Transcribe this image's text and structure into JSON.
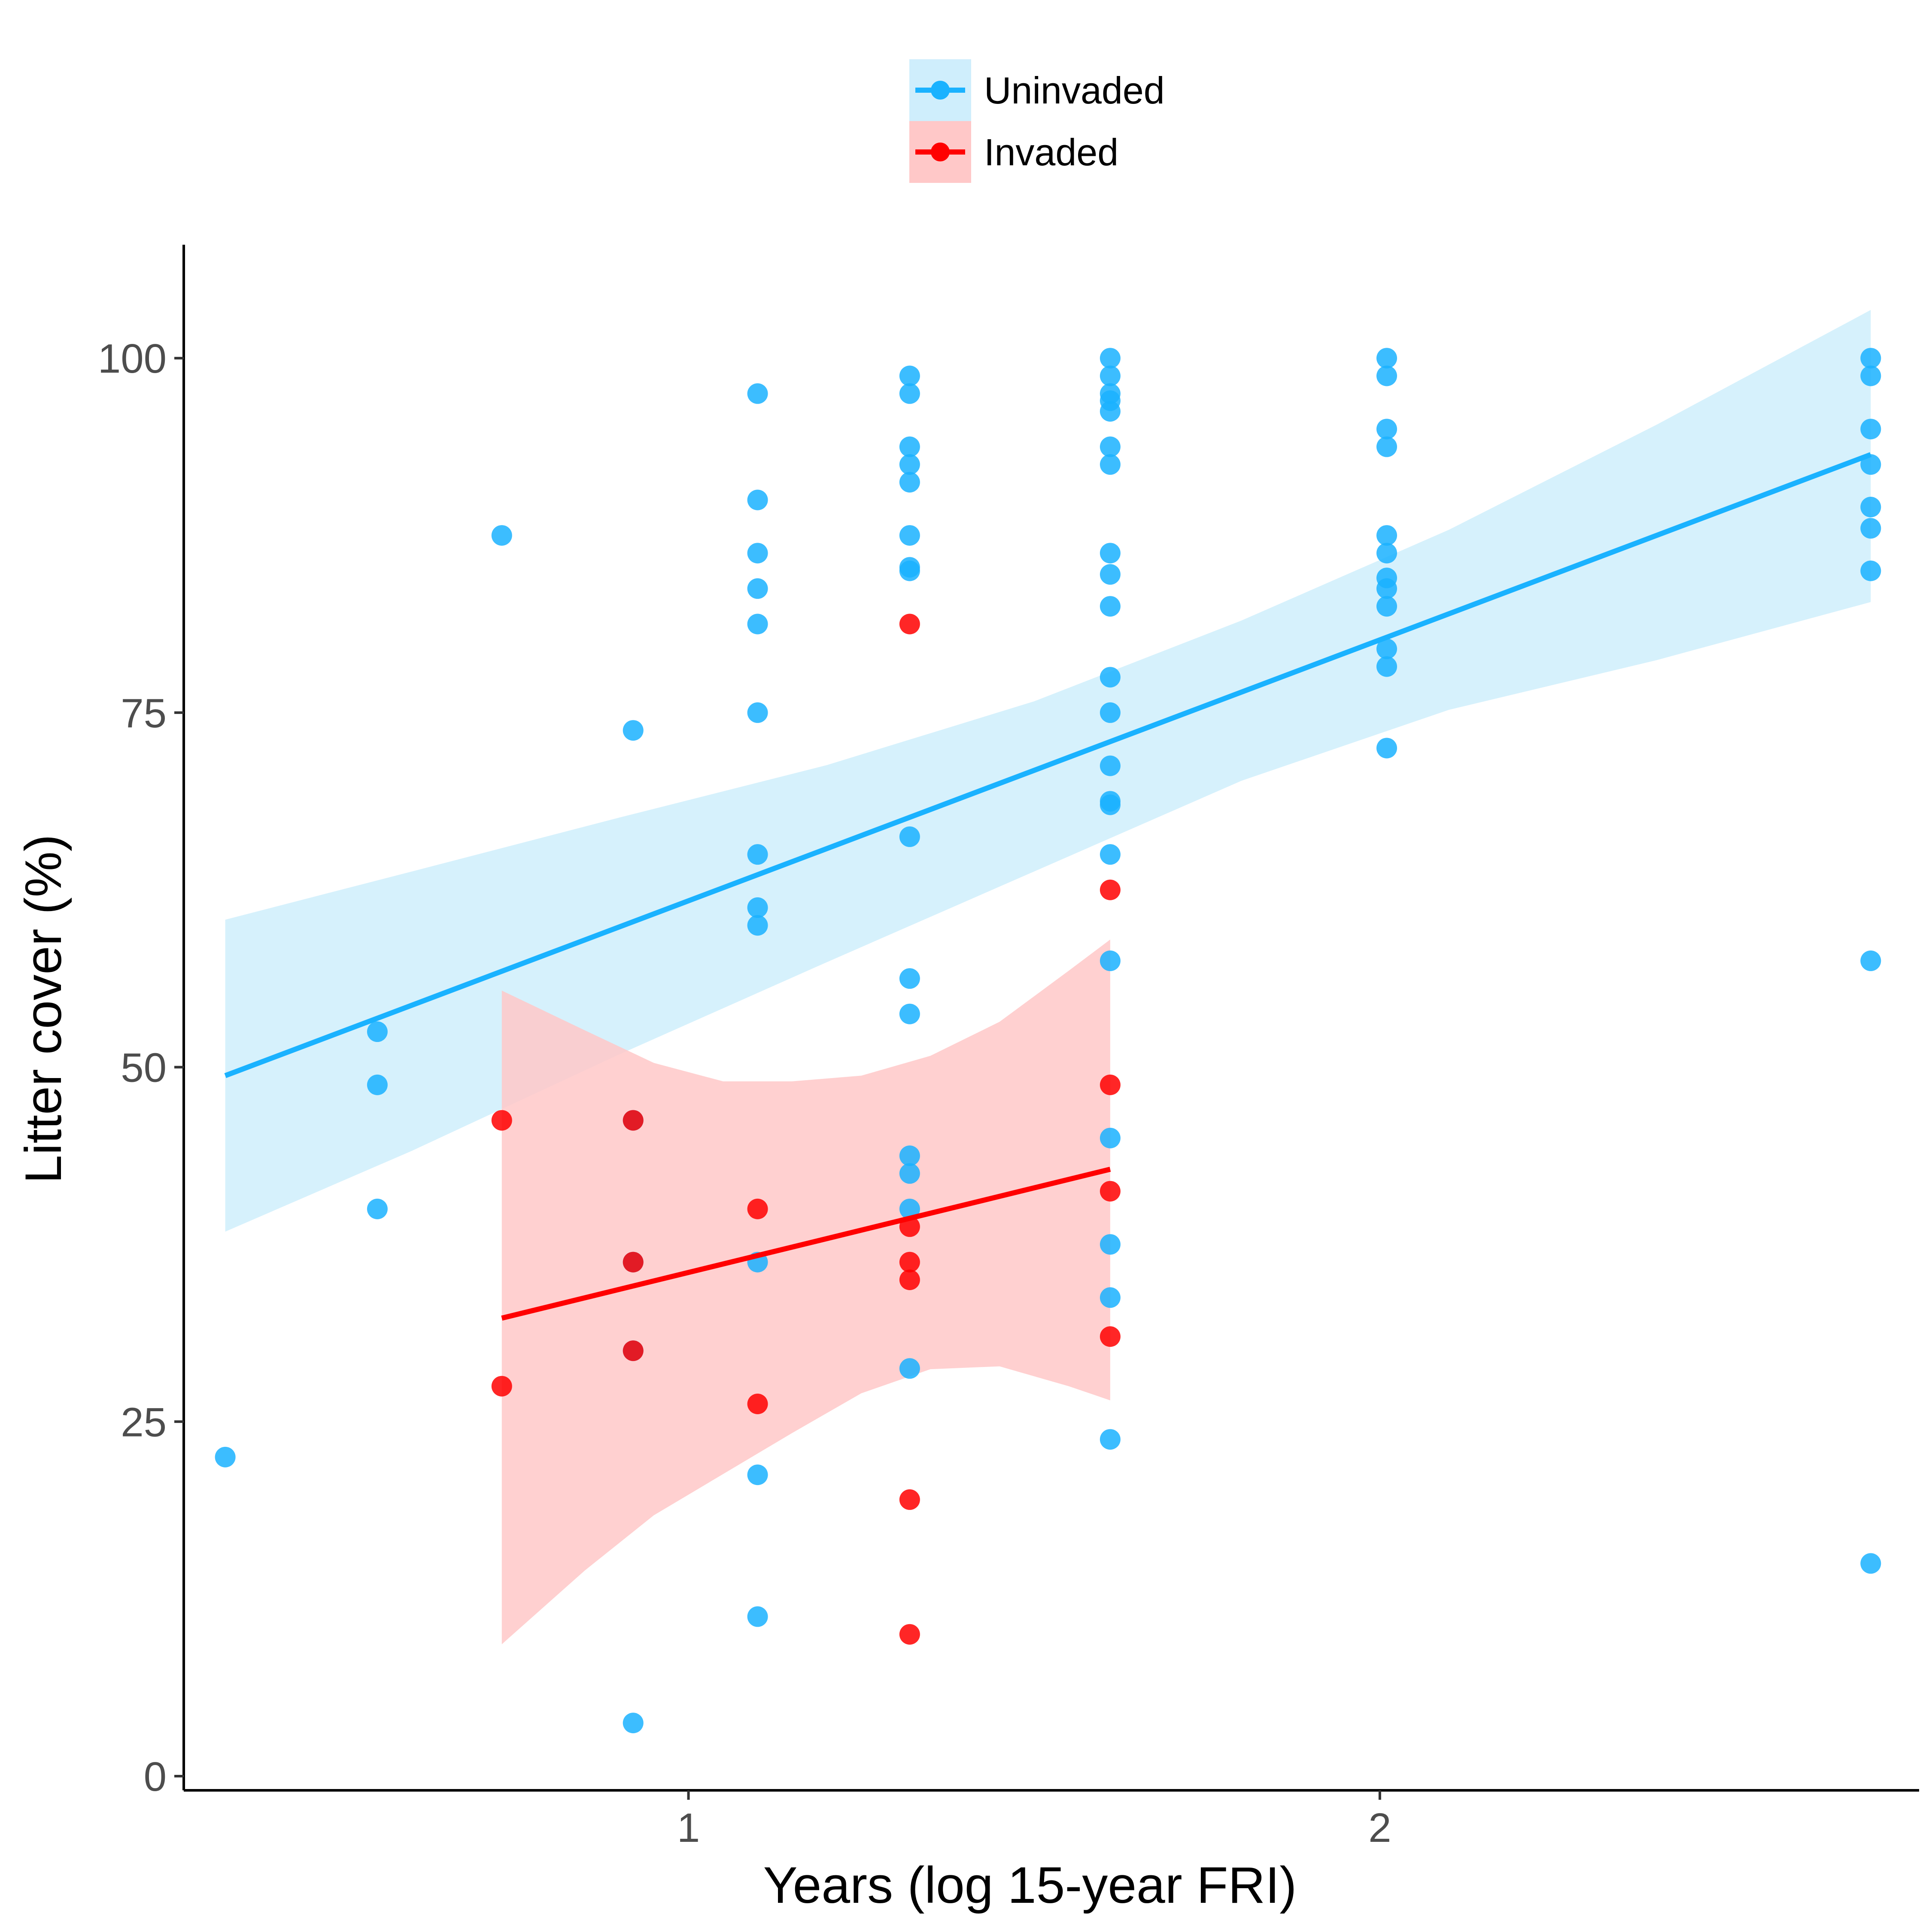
{
  "chart_data": {
    "type": "scatter",
    "title": "",
    "xlabel": "Years (log 15-year FRI)",
    "ylabel": "Litter cover (%)",
    "xlim": [
      0.27,
      2.78
    ],
    "ylim": [
      -1,
      108
    ],
    "x_ticks": [
      1,
      2
    ],
    "y_ticks": [
      0,
      25,
      50,
      75,
      100
    ],
    "grid": false,
    "legend_position": "top",
    "series": [
      {
        "name": "Uninvaded",
        "color": "#1AB2FF",
        "band_color": "#CFEEFC",
        "points": [
          [
            0.33,
            22.5
          ],
          [
            0.55,
            52.5
          ],
          [
            0.55,
            48.75
          ],
          [
            0.55,
            40
          ],
          [
            0.73,
            87.5
          ],
          [
            0.92,
            73.75
          ],
          [
            0.92,
            46.25
          ],
          [
            0.92,
            36.25
          ],
          [
            0.92,
            30
          ],
          [
            0.92,
            3.75
          ],
          [
            1.1,
            97.5
          ],
          [
            1.1,
            90
          ],
          [
            1.1,
            86.25
          ],
          [
            1.1,
            83.75
          ],
          [
            1.1,
            81.25
          ],
          [
            1.1,
            75
          ],
          [
            1.1,
            65
          ],
          [
            1.1,
            61.25
          ],
          [
            1.1,
            60
          ],
          [
            1.1,
            36.25
          ],
          [
            1.1,
            21.25
          ],
          [
            1.1,
            11.25
          ],
          [
            1.32,
            98.75
          ],
          [
            1.32,
            97.5
          ],
          [
            1.32,
            93.75
          ],
          [
            1.32,
            92.5
          ],
          [
            1.32,
            91.25
          ],
          [
            1.32,
            87.5
          ],
          [
            1.32,
            85.25
          ],
          [
            1.32,
            85
          ],
          [
            1.32,
            66.25
          ],
          [
            1.32,
            56.25
          ],
          [
            1.32,
            53.75
          ],
          [
            1.32,
            43.75
          ],
          [
            1.32,
            42.5
          ],
          [
            1.32,
            40
          ],
          [
            1.32,
            28.75
          ],
          [
            1.61,
            100
          ],
          [
            1.61,
            98.75
          ],
          [
            1.61,
            97.5
          ],
          [
            1.61,
            97
          ],
          [
            1.61,
            96.25
          ],
          [
            1.61,
            93.75
          ],
          [
            1.61,
            92.5
          ],
          [
            1.61,
            86.25
          ],
          [
            1.61,
            84.75
          ],
          [
            1.61,
            82.5
          ],
          [
            1.61,
            77.5
          ],
          [
            1.61,
            75
          ],
          [
            1.61,
            71.25
          ],
          [
            1.61,
            68.75
          ],
          [
            1.61,
            68.5
          ],
          [
            1.61,
            65
          ],
          [
            1.61,
            57.5
          ],
          [
            1.61,
            45
          ],
          [
            1.61,
            37.5
          ],
          [
            1.61,
            33.75
          ],
          [
            1.61,
            23.75
          ],
          [
            2.01,
            100
          ],
          [
            2.01,
            98.75
          ],
          [
            2.01,
            95
          ],
          [
            2.01,
            93.75
          ],
          [
            2.01,
            87.5
          ],
          [
            2.01,
            86.25
          ],
          [
            2.01,
            84.5
          ],
          [
            2.01,
            83.75
          ],
          [
            2.01,
            82.5
          ],
          [
            2.01,
            79.5
          ],
          [
            2.01,
            78.25
          ],
          [
            2.01,
            72.5
          ],
          [
            2.71,
            100
          ],
          [
            2.71,
            98.75
          ],
          [
            2.71,
            95
          ],
          [
            2.71,
            92.5
          ],
          [
            2.71,
            89.5
          ],
          [
            2.71,
            88
          ],
          [
            2.71,
            85
          ],
          [
            2.71,
            57.5
          ],
          [
            2.71,
            15
          ]
        ],
        "fit_line": [
          [
            0.33,
            49.4
          ],
          [
            2.71,
            93.2
          ]
        ],
        "confidence_band": {
          "x": [
            0.33,
            0.6,
            0.9,
            1.2,
            1.5,
            1.8,
            2.1,
            2.4,
            2.71
          ],
          "upper": [
            60.4,
            63.8,
            67.6,
            71.3,
            75.8,
            81.5,
            87.9,
            95.3,
            103.4
          ],
          "lower": [
            38.4,
            44.1,
            50.9,
            57.4,
            63.8,
            70.2,
            75.2,
            78.7,
            82.8
          ]
        }
      },
      {
        "name": "Invaded",
        "color": "#FF0000",
        "band_color": "#FFC8C8",
        "points": [
          [
            0.73,
            46.25
          ],
          [
            0.73,
            27.5
          ],
          [
            0.92,
            46.25
          ],
          [
            0.92,
            36.25
          ],
          [
            0.92,
            30
          ],
          [
            1.1,
            40
          ],
          [
            1.1,
            26.25
          ],
          [
            1.32,
            81.25
          ],
          [
            1.32,
            38.75
          ],
          [
            1.32,
            36.25
          ],
          [
            1.32,
            35
          ],
          [
            1.32,
            19.5
          ],
          [
            1.32,
            10
          ],
          [
            1.61,
            62.5
          ],
          [
            1.61,
            48.75
          ],
          [
            1.61,
            41.25
          ],
          [
            1.61,
            31
          ]
        ],
        "fit_line": [
          [
            0.73,
            32.3
          ],
          [
            1.61,
            42.8
          ]
        ],
        "confidence_band": {
          "x": [
            0.73,
            0.85,
            0.95,
            1.05,
            1.15,
            1.25,
            1.35,
            1.45,
            1.55,
            1.61
          ],
          "upper": [
            55.4,
            52.6,
            50.3,
            49.0,
            49.0,
            49.4,
            50.8,
            53.2,
            56.8,
            59.0
          ],
          "lower": [
            9.3,
            14.5,
            18.4,
            21.3,
            24.2,
            27.0,
            28.7,
            28.9,
            27.5,
            26.5
          ]
        }
      }
    ]
  }
}
